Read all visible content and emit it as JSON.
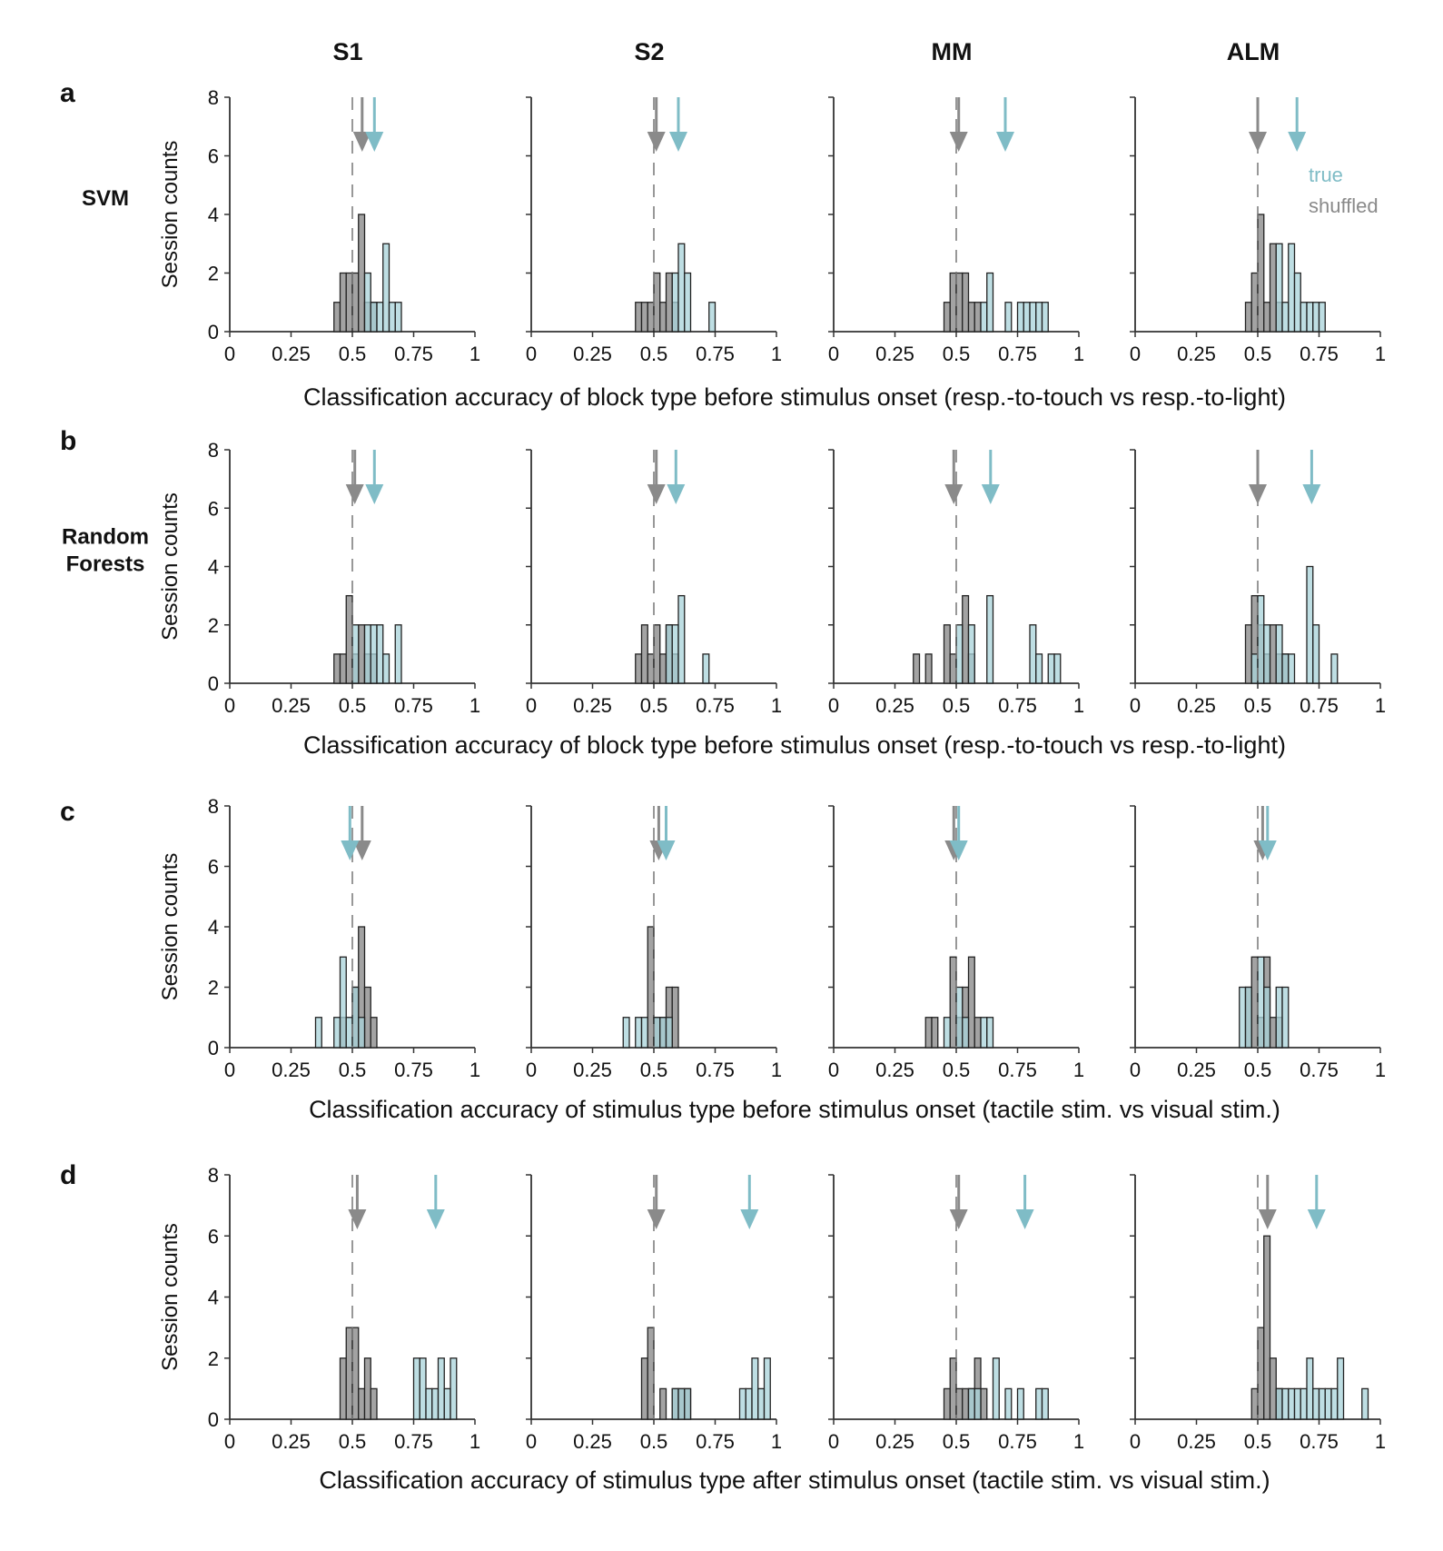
{
  "figure": {
    "columns": [
      "S1",
      "S2",
      "MM",
      "ALM"
    ],
    "colors": {
      "true": "#a8d3da",
      "shuffled": "#a3a3a3",
      "true_arrow": "#7fbcc6",
      "shuffled_arrow": "#8a8a8a",
      "axis": "#333333",
      "chance_line": "#777777"
    },
    "legend": {
      "true": "true",
      "shuffled": "shuffled"
    },
    "rows": [
      {
        "letter": "a",
        "method": [
          "SVM"
        ],
        "ylabel": "Session counts",
        "xlabel": "Classification accuracy of block type before stimulus onset (resp.-to-touch vs resp.-to-light)"
      },
      {
        "letter": "b",
        "method": [
          "Random",
          "Forests"
        ],
        "ylabel": "Session counts",
        "xlabel": "Classification accuracy of block type before stimulus onset (resp.-to-touch vs resp.-to-light)"
      },
      {
        "letter": "c",
        "method": [],
        "ylabel": "Session counts",
        "xlabel": "Classification accuracy of stimulus type before stimulus onset (tactile stim. vs visual stim.)"
      },
      {
        "letter": "d",
        "method": [],
        "ylabel": "Session counts",
        "xlabel": "Classification accuracy of stimulus type after stimulus onset (tactile stim. vs visual stim.)"
      }
    ]
  },
  "chart_data": [
    {
      "row": "a",
      "region": "S1",
      "type": "bar",
      "xlim": [
        0,
        1
      ],
      "ylim": [
        0,
        8
      ],
      "xticks": [
        "0",
        "0.25",
        "0.5",
        "0.75",
        "1"
      ],
      "yticks": [
        "0",
        "2",
        "4",
        "6",
        "8"
      ],
      "bin_width": 0.025,
      "shuffled": [
        [
          0.425,
          1
        ],
        [
          0.45,
          2
        ],
        [
          0.475,
          2
        ],
        [
          0.5,
          2
        ],
        [
          0.525,
          4
        ],
        [
          0.55,
          1
        ],
        [
          0.575,
          1
        ]
      ],
      "true": [
        [
          0.55,
          2
        ],
        [
          0.575,
          1
        ],
        [
          0.6,
          1
        ],
        [
          0.625,
          3
        ],
        [
          0.65,
          1
        ],
        [
          0.675,
          1
        ]
      ],
      "true_mean": 0.59,
      "shuffled_mean": 0.54
    },
    {
      "row": "a",
      "region": "S2",
      "type": "bar",
      "xlim": [
        0,
        1
      ],
      "ylim": [
        0,
        8
      ],
      "xticks": [
        "0",
        "0.25",
        "0.5",
        "0.75",
        "1"
      ],
      "yticks": [
        "0",
        "2",
        "4",
        "6",
        "8"
      ],
      "bin_width": 0.025,
      "shuffled": [
        [
          0.425,
          1
        ],
        [
          0.45,
          1
        ],
        [
          0.475,
          1
        ],
        [
          0.5,
          2
        ],
        [
          0.525,
          1
        ],
        [
          0.55,
          2
        ],
        [
          0.575,
          1
        ]
      ],
      "true": [
        [
          0.575,
          2
        ],
        [
          0.6,
          3
        ],
        [
          0.625,
          2
        ],
        [
          0.725,
          1
        ]
      ],
      "true_mean": 0.6,
      "shuffled_mean": 0.51
    },
    {
      "row": "a",
      "region": "MM",
      "type": "bar",
      "xlim": [
        0,
        1
      ],
      "ylim": [
        0,
        8
      ],
      "xticks": [
        "0",
        "0.25",
        "0.5",
        "0.75",
        "1"
      ],
      "yticks": [
        "0",
        "2",
        "4",
        "6",
        "8"
      ],
      "bin_width": 0.025,
      "shuffled": [
        [
          0.45,
          1
        ],
        [
          0.475,
          2
        ],
        [
          0.5,
          2
        ],
        [
          0.525,
          2
        ],
        [
          0.55,
          1
        ],
        [
          0.575,
          1
        ]
      ],
      "true": [
        [
          0.6,
          1
        ],
        [
          0.625,
          2
        ],
        [
          0.7,
          1
        ],
        [
          0.75,
          1
        ],
        [
          0.775,
          1
        ],
        [
          0.8,
          1
        ],
        [
          0.825,
          1
        ],
        [
          0.85,
          1
        ]
      ],
      "true_mean": 0.7,
      "shuffled_mean": 0.51
    },
    {
      "row": "a",
      "region": "ALM",
      "type": "bar",
      "xlim": [
        0,
        1
      ],
      "ylim": [
        0,
        8
      ],
      "xticks": [
        "0",
        "0.25",
        "0.5",
        "0.75",
        "1"
      ],
      "yticks": [
        "0",
        "2",
        "4",
        "6",
        "8"
      ],
      "bin_width": 0.025,
      "shuffled": [
        [
          0.45,
          1
        ],
        [
          0.475,
          2
        ],
        [
          0.5,
          4
        ],
        [
          0.525,
          1
        ],
        [
          0.55,
          3
        ],
        [
          0.575,
          1
        ]
      ],
      "true": [
        [
          0.575,
          3
        ],
        [
          0.6,
          1
        ],
        [
          0.625,
          3
        ],
        [
          0.65,
          2
        ],
        [
          0.675,
          1
        ],
        [
          0.7,
          1
        ],
        [
          0.725,
          1
        ],
        [
          0.75,
          1
        ]
      ],
      "true_mean": 0.66,
      "shuffled_mean": 0.5
    },
    {
      "row": "b",
      "region": "S1",
      "type": "bar",
      "xlim": [
        0,
        1
      ],
      "ylim": [
        0,
        8
      ],
      "xticks": [
        "0",
        "0.25",
        "0.5",
        "0.75",
        "1"
      ],
      "yticks": [
        "0",
        "2",
        "4",
        "6",
        "8"
      ],
      "bin_width": 0.025,
      "shuffled": [
        [
          0.425,
          1
        ],
        [
          0.45,
          1
        ],
        [
          0.475,
          3
        ],
        [
          0.5,
          1
        ],
        [
          0.525,
          2
        ],
        [
          0.55,
          1
        ],
        [
          0.575,
          1
        ]
      ],
      "true": [
        [
          0.5,
          2
        ],
        [
          0.55,
          2
        ],
        [
          0.575,
          2
        ],
        [
          0.6,
          2
        ],
        [
          0.625,
          1
        ],
        [
          0.675,
          2
        ]
      ],
      "true_mean": 0.59,
      "shuffled_mean": 0.51
    },
    {
      "row": "b",
      "region": "S2",
      "type": "bar",
      "xlim": [
        0,
        1
      ],
      "ylim": [
        0,
        8
      ],
      "xticks": [
        "0",
        "0.25",
        "0.5",
        "0.75",
        "1"
      ],
      "yticks": [
        "0",
        "2",
        "4",
        "6",
        "8"
      ],
      "bin_width": 0.025,
      "shuffled": [
        [
          0.425,
          1
        ],
        [
          0.45,
          2
        ],
        [
          0.475,
          1
        ],
        [
          0.5,
          2
        ],
        [
          0.525,
          1
        ],
        [
          0.55,
          2
        ],
        [
          0.575,
          1
        ]
      ],
      "true": [
        [
          0.55,
          2
        ],
        [
          0.575,
          2
        ],
        [
          0.6,
          3
        ],
        [
          0.7,
          1
        ]
      ],
      "true_mean": 0.59,
      "shuffled_mean": 0.51
    },
    {
      "row": "b",
      "region": "MM",
      "type": "bar",
      "xlim": [
        0,
        1
      ],
      "ylim": [
        0,
        8
      ],
      "xticks": [
        "0",
        "0.25",
        "0.5",
        "0.75",
        "1"
      ],
      "yticks": [
        "0",
        "2",
        "4",
        "6",
        "8"
      ],
      "bin_width": 0.025,
      "shuffled": [
        [
          0.325,
          1
        ],
        [
          0.375,
          1
        ],
        [
          0.45,
          2
        ],
        [
          0.475,
          1
        ],
        [
          0.525,
          3
        ],
        [
          0.55,
          1
        ]
      ],
      "true": [
        [
          0.5,
          2
        ],
        [
          0.55,
          2
        ],
        [
          0.625,
          3
        ],
        [
          0.8,
          2
        ],
        [
          0.825,
          1
        ],
        [
          0.875,
          1
        ],
        [
          0.9,
          1
        ]
      ],
      "true_mean": 0.64,
      "shuffled_mean": 0.49
    },
    {
      "row": "b",
      "region": "ALM",
      "type": "bar",
      "xlim": [
        0,
        1
      ],
      "ylim": [
        0,
        8
      ],
      "xticks": [
        "0",
        "0.25",
        "0.5",
        "0.75",
        "1"
      ],
      "yticks": [
        "0",
        "2",
        "4",
        "6",
        "8"
      ],
      "bin_width": 0.025,
      "shuffled": [
        [
          0.45,
          2
        ],
        [
          0.475,
          3
        ],
        [
          0.5,
          2
        ],
        [
          0.525,
          1
        ],
        [
          0.55,
          2
        ],
        [
          0.575,
          1
        ],
        [
          0.6,
          1
        ]
      ],
      "true": [
        [
          0.475,
          1
        ],
        [
          0.5,
          3
        ],
        [
          0.525,
          2
        ],
        [
          0.575,
          2
        ],
        [
          0.6,
          1
        ],
        [
          0.625,
          1
        ],
        [
          0.7,
          4
        ],
        [
          0.725,
          2
        ],
        [
          0.8,
          1
        ]
      ],
      "true_mean": 0.72,
      "shuffled_mean": 0.5
    },
    {
      "row": "c",
      "region": "S1",
      "type": "bar",
      "xlim": [
        0,
        1
      ],
      "ylim": [
        0,
        8
      ],
      "xticks": [
        "0",
        "0.25",
        "0.5",
        "0.75",
        "1"
      ],
      "yticks": [
        "0",
        "2",
        "4",
        "6",
        "8"
      ],
      "bin_width": 0.025,
      "shuffled": [
        [
          0.45,
          1
        ],
        [
          0.5,
          2
        ],
        [
          0.525,
          4
        ],
        [
          0.55,
          2
        ],
        [
          0.575,
          1
        ]
      ],
      "true": [
        [
          0.35,
          1
        ],
        [
          0.425,
          1
        ],
        [
          0.45,
          3
        ],
        [
          0.475,
          1
        ],
        [
          0.5,
          2
        ],
        [
          0.525,
          1
        ]
      ],
      "true_mean": 0.49,
      "shuffled_mean": 0.54
    },
    {
      "row": "c",
      "region": "S2",
      "type": "bar",
      "xlim": [
        0,
        1
      ],
      "ylim": [
        0,
        8
      ],
      "xticks": [
        "0",
        "0.25",
        "0.5",
        "0.75",
        "1"
      ],
      "yticks": [
        "0",
        "2",
        "4",
        "6",
        "8"
      ],
      "bin_width": 0.025,
      "shuffled": [
        [
          0.475,
          4
        ],
        [
          0.5,
          1
        ],
        [
          0.525,
          1
        ],
        [
          0.55,
          2
        ],
        [
          0.575,
          2
        ]
      ],
      "true": [
        [
          0.375,
          1
        ],
        [
          0.425,
          1
        ],
        [
          0.45,
          1
        ],
        [
          0.5,
          1
        ],
        [
          0.525,
          1
        ],
        [
          0.55,
          1
        ]
      ],
      "true_mean": 0.55,
      "shuffled_mean": 0.52
    },
    {
      "row": "c",
      "region": "MM",
      "type": "bar",
      "xlim": [
        0,
        1
      ],
      "ylim": [
        0,
        8
      ],
      "xticks": [
        "0",
        "0.25",
        "0.5",
        "0.75",
        "1"
      ],
      "yticks": [
        "0",
        "2",
        "4",
        "6",
        "8"
      ],
      "bin_width": 0.025,
      "shuffled": [
        [
          0.375,
          1
        ],
        [
          0.4,
          1
        ],
        [
          0.475,
          3
        ],
        [
          0.5,
          1
        ],
        [
          0.525,
          2
        ],
        [
          0.55,
          3
        ],
        [
          0.575,
          1
        ]
      ],
      "true": [
        [
          0.45,
          1
        ],
        [
          0.5,
          2
        ],
        [
          0.525,
          1
        ],
        [
          0.6,
          1
        ],
        [
          0.625,
          1
        ]
      ],
      "true_mean": 0.51,
      "shuffled_mean": 0.49
    },
    {
      "row": "c",
      "region": "ALM",
      "type": "bar",
      "xlim": [
        0,
        1
      ],
      "ylim": [
        0,
        8
      ],
      "xticks": [
        "0",
        "0.25",
        "0.5",
        "0.75",
        "1"
      ],
      "yticks": [
        "0",
        "2",
        "4",
        "6",
        "8"
      ],
      "bin_width": 0.025,
      "shuffled": [
        [
          0.45,
          2
        ],
        [
          0.475,
          3
        ],
        [
          0.5,
          1
        ],
        [
          0.525,
          3
        ],
        [
          0.55,
          1
        ],
        [
          0.575,
          1
        ]
      ],
      "true": [
        [
          0.425,
          2
        ],
        [
          0.45,
          2
        ],
        [
          0.5,
          3
        ],
        [
          0.525,
          2
        ],
        [
          0.575,
          2
        ],
        [
          0.6,
          2
        ]
      ],
      "true_mean": 0.54,
      "shuffled_mean": 0.52
    },
    {
      "row": "d",
      "region": "S1",
      "type": "bar",
      "xlim": [
        0,
        1
      ],
      "ylim": [
        0,
        8
      ],
      "xticks": [
        "0",
        "0.25",
        "0.5",
        "0.75",
        "1"
      ],
      "yticks": [
        "0",
        "2",
        "4",
        "6",
        "8"
      ],
      "bin_width": 0.025,
      "shuffled": [
        [
          0.45,
          2
        ],
        [
          0.475,
          3
        ],
        [
          0.5,
          3
        ],
        [
          0.525,
          1
        ],
        [
          0.55,
          2
        ],
        [
          0.575,
          1
        ]
      ],
      "true": [
        [
          0.75,
          2
        ],
        [
          0.775,
          2
        ],
        [
          0.8,
          1
        ],
        [
          0.825,
          1
        ],
        [
          0.85,
          2
        ],
        [
          0.875,
          1
        ],
        [
          0.9,
          2
        ]
      ],
      "true_mean": 0.84,
      "shuffled_mean": 0.52
    },
    {
      "row": "d",
      "region": "S2",
      "type": "bar",
      "xlim": [
        0,
        1
      ],
      "ylim": [
        0,
        8
      ],
      "xticks": [
        "0",
        "0.25",
        "0.5",
        "0.75",
        "1"
      ],
      "yticks": [
        "0",
        "2",
        "4",
        "6",
        "8"
      ],
      "bin_width": 0.025,
      "shuffled": [
        [
          0.45,
          2
        ],
        [
          0.475,
          3
        ],
        [
          0.525,
          1
        ],
        [
          0.575,
          1
        ],
        [
          0.6,
          1
        ],
        [
          0.625,
          1
        ]
      ],
      "true": [
        [
          0.575,
          1
        ],
        [
          0.6,
          1
        ],
        [
          0.625,
          1
        ],
        [
          0.85,
          1
        ],
        [
          0.875,
          1
        ],
        [
          0.9,
          2
        ],
        [
          0.925,
          1
        ],
        [
          0.95,
          2
        ]
      ],
      "true_mean": 0.89,
      "shuffled_mean": 0.51
    },
    {
      "row": "d",
      "region": "MM",
      "type": "bar",
      "xlim": [
        0,
        1
      ],
      "ylim": [
        0,
        8
      ],
      "xticks": [
        "0",
        "0.25",
        "0.5",
        "0.75",
        "1"
      ],
      "yticks": [
        "0",
        "2",
        "4",
        "6",
        "8"
      ],
      "bin_width": 0.025,
      "shuffled": [
        [
          0.45,
          1
        ],
        [
          0.475,
          2
        ],
        [
          0.5,
          1
        ],
        [
          0.525,
          1
        ],
        [
          0.55,
          1
        ],
        [
          0.575,
          2
        ],
        [
          0.6,
          1
        ]
      ],
      "true": [
        [
          0.55,
          1
        ],
        [
          0.575,
          1
        ],
        [
          0.65,
          2
        ],
        [
          0.7,
          1
        ],
        [
          0.75,
          1
        ],
        [
          0.825,
          1
        ],
        [
          0.85,
          1
        ]
      ],
      "true_mean": 0.78,
      "shuffled_mean": 0.51
    },
    {
      "row": "d",
      "region": "ALM",
      "type": "bar",
      "xlim": [
        0,
        1
      ],
      "ylim": [
        0,
        8
      ],
      "xticks": [
        "0",
        "0.25",
        "0.5",
        "0.75",
        "1"
      ],
      "yticks": [
        "0",
        "2",
        "4",
        "6",
        "8"
      ],
      "bin_width": 0.025,
      "shuffled": [
        [
          0.475,
          1
        ],
        [
          0.5,
          3
        ],
        [
          0.525,
          6
        ],
        [
          0.55,
          2
        ],
        [
          0.575,
          1
        ]
      ],
      "true": [
        [
          0.575,
          1
        ],
        [
          0.6,
          1
        ],
        [
          0.625,
          1
        ],
        [
          0.65,
          1
        ],
        [
          0.675,
          1
        ],
        [
          0.7,
          2
        ],
        [
          0.725,
          1
        ],
        [
          0.75,
          1
        ],
        [
          0.775,
          1
        ],
        [
          0.8,
          1
        ],
        [
          0.825,
          2
        ],
        [
          0.925,
          1
        ]
      ],
      "true_mean": 0.74,
      "shuffled_mean": 0.54
    }
  ]
}
